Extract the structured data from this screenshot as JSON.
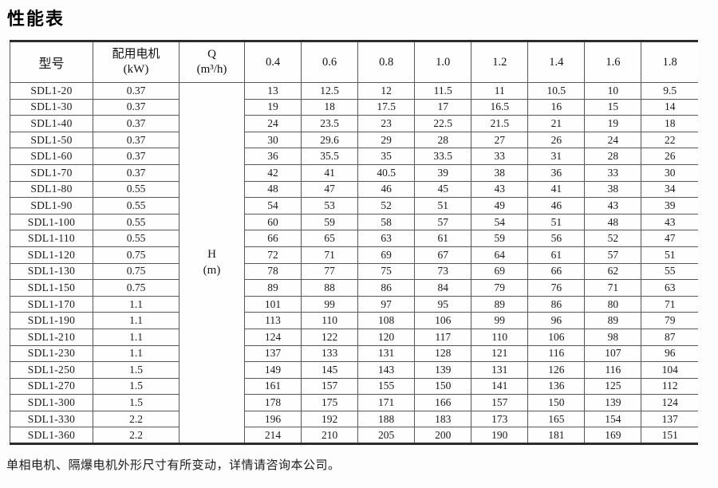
{
  "page": {
    "title": "性能表",
    "footer_note": "单相电机、隔爆电机外形尺寸有所变动，详情请咨询本公司。"
  },
  "table": {
    "headers": {
      "model": "型号",
      "motor_line1": "配用电机",
      "motor_line2": "(kW)",
      "q_line1": "Q",
      "q_line2": "(m³/h)"
    },
    "q_values": [
      "0.4",
      "0.6",
      "0.8",
      "1.0",
      "1.2",
      "1.4",
      "1.6",
      "1.8"
    ],
    "h_cell": {
      "line1": "H",
      "line2": "(m)"
    },
    "rows": [
      {
        "model": "SDL1-20",
        "power": "0.37",
        "h": [
          "13",
          "12.5",
          "12",
          "11.5",
          "11",
          "10.5",
          "10",
          "9.5"
        ]
      },
      {
        "model": "SDL1-30",
        "power": "0.37",
        "h": [
          "19",
          "18",
          "17.5",
          "17",
          "16.5",
          "16",
          "15",
          "14"
        ]
      },
      {
        "model": "SDL1-40",
        "power": "0.37",
        "h": [
          "24",
          "23.5",
          "23",
          "22.5",
          "21.5",
          "21",
          "19",
          "18"
        ]
      },
      {
        "model": "SDL1-50",
        "power": "0.37",
        "h": [
          "30",
          "29.6",
          "29",
          "28",
          "27",
          "26",
          "24",
          "22"
        ]
      },
      {
        "model": "SDL1-60",
        "power": "0.37",
        "h": [
          "36",
          "35.5",
          "35",
          "33.5",
          "33",
          "31",
          "28",
          "26"
        ]
      },
      {
        "model": "SDL1-70",
        "power": "0.37",
        "h": [
          "42",
          "41",
          "40.5",
          "39",
          "38",
          "36",
          "33",
          "30"
        ]
      },
      {
        "model": "SDL1-80",
        "power": "0.55",
        "h": [
          "48",
          "47",
          "46",
          "45",
          "43",
          "41",
          "38",
          "34"
        ]
      },
      {
        "model": "SDL1-90",
        "power": "0.55",
        "h": [
          "54",
          "53",
          "52",
          "51",
          "49",
          "46",
          "43",
          "39"
        ]
      },
      {
        "model": "SDL1-100",
        "power": "0.55",
        "h": [
          "60",
          "59",
          "58",
          "57",
          "54",
          "51",
          "48",
          "43"
        ]
      },
      {
        "model": "SDL1-110",
        "power": "0.55",
        "h": [
          "66",
          "65",
          "63",
          "61",
          "59",
          "56",
          "52",
          "47"
        ]
      },
      {
        "model": "SDL1-120",
        "power": "0.75",
        "h": [
          "72",
          "71",
          "69",
          "67",
          "64",
          "61",
          "57",
          "51"
        ]
      },
      {
        "model": "SDL1-130",
        "power": "0.75",
        "h": [
          "78",
          "77",
          "75",
          "73",
          "69",
          "66",
          "62",
          "55"
        ]
      },
      {
        "model": "SDL1-150",
        "power": "0.75",
        "h": [
          "89",
          "88",
          "86",
          "84",
          "79",
          "76",
          "71",
          "63"
        ]
      },
      {
        "model": "SDL1-170",
        "power": "1.1",
        "h": [
          "101",
          "99",
          "97",
          "95",
          "89",
          "86",
          "80",
          "71"
        ]
      },
      {
        "model": "SDL1-190",
        "power": "1.1",
        "h": [
          "113",
          "110",
          "108",
          "106",
          "99",
          "96",
          "89",
          "79"
        ]
      },
      {
        "model": "SDL1-210",
        "power": "1.1",
        "h": [
          "124",
          "122",
          "120",
          "117",
          "110",
          "106",
          "98",
          "87"
        ]
      },
      {
        "model": "SDL1-230",
        "power": "1.1",
        "h": [
          "137",
          "133",
          "131",
          "128",
          "121",
          "116",
          "107",
          "96"
        ]
      },
      {
        "model": "SDL1-250",
        "power": "1.5",
        "h": [
          "149",
          "145",
          "143",
          "139",
          "131",
          "126",
          "116",
          "104"
        ]
      },
      {
        "model": "SDL1-270",
        "power": "1.5",
        "h": [
          "161",
          "157",
          "155",
          "150",
          "141",
          "136",
          "125",
          "112"
        ]
      },
      {
        "model": "SDL1-300",
        "power": "1.5",
        "h": [
          "178",
          "175",
          "171",
          "166",
          "157",
          "150",
          "139",
          "124"
        ]
      },
      {
        "model": "SDL1-330",
        "power": "2.2",
        "h": [
          "196",
          "192",
          "188",
          "183",
          "173",
          "165",
          "154",
          "137"
        ]
      },
      {
        "model": "SDL1-360",
        "power": "2.2",
        "h": [
          "214",
          "210",
          "205",
          "200",
          "190",
          "181",
          "169",
          "151"
        ]
      }
    ]
  }
}
